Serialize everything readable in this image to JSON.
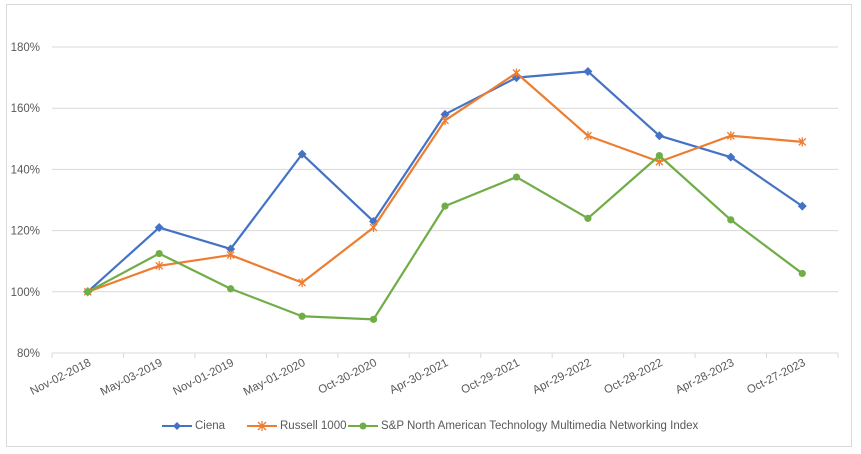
{
  "chart_data": {
    "type": "line",
    "title": "",
    "xlabel": "",
    "ylabel": "",
    "ylim": [
      0.8,
      1.8
    ],
    "yticks": [
      "80%",
      "100%",
      "120%",
      "140%",
      "160%",
      "180%"
    ],
    "ytick_values": [
      0.8,
      1.0,
      1.2,
      1.4,
      1.6,
      1.8
    ],
    "grid": "horizontal",
    "legend_position": "bottom",
    "categories": [
      "Nov-02-2018",
      "May-03-2019",
      "Nov-01-2019",
      "May-01-2020",
      "Oct-30-2020",
      "Apr-30-2021",
      "Oct-29-2021",
      "Apr-29-2022",
      "Oct-28-2022",
      "Apr-28-2023",
      "Oct-27-2023"
    ],
    "series": [
      {
        "name": "Ciena",
        "color": "#4472c4",
        "marker": "diamond",
        "values": [
          1.0,
          1.21,
          1.14,
          1.45,
          1.23,
          1.58,
          1.7,
          1.72,
          1.51,
          1.44,
          1.28
        ]
      },
      {
        "name": "Russell 1000",
        "color": "#ed7d31",
        "marker": "star",
        "values": [
          1.0,
          1.085,
          1.12,
          1.03,
          1.21,
          1.56,
          1.715,
          1.51,
          1.425,
          1.51,
          1.49
        ]
      },
      {
        "name": "S&P North American Technology Multimedia Networking Index",
        "color": "#70ad47",
        "marker": "circle",
        "values": [
          1.0,
          1.125,
          1.01,
          0.92,
          0.91,
          1.28,
          1.375,
          1.24,
          1.445,
          1.235,
          1.06
        ]
      }
    ]
  }
}
